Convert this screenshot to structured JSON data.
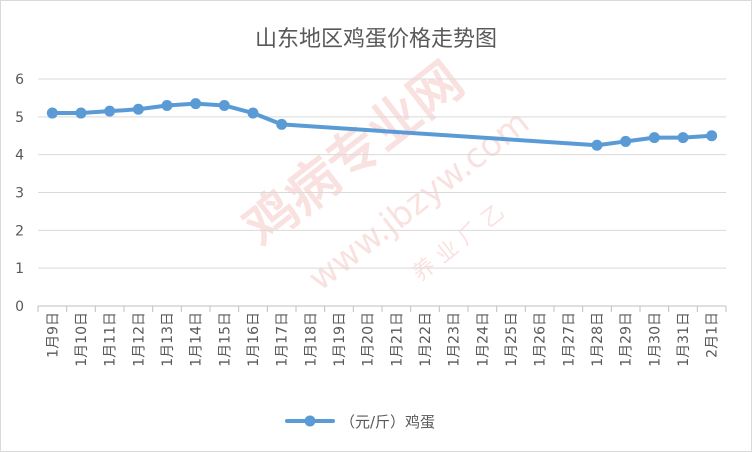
{
  "chart_data": {
    "type": "line",
    "title": "山东地区鸡蛋价格走势图",
    "xlabel": "",
    "ylabel": "",
    "ylim": [
      0,
      6
    ],
    "yticks": [
      0,
      1,
      2,
      3,
      4,
      5,
      6
    ],
    "grid": true,
    "legend_position": "bottom",
    "categories": [
      "1月9日",
      "1月10日",
      "1月11日",
      "1月12日",
      "1月13日",
      "1月14日",
      "1月15日",
      "1月16日",
      "1月17日",
      "1月18日",
      "1月19日",
      "1月20日",
      "1月21日",
      "1月22日",
      "1月23日",
      "1月24日",
      "1月25日",
      "1月26日",
      "1月27日",
      "1月28日",
      "1月29日",
      "1月30日",
      "1月31日",
      "2月1日"
    ],
    "series": [
      {
        "name": "（元/斤）鸡蛋",
        "color": "#5b9bd5",
        "values": [
          5.1,
          5.1,
          5.15,
          5.2,
          5.3,
          5.35,
          5.3,
          5.1,
          4.8,
          null,
          null,
          null,
          null,
          null,
          null,
          null,
          null,
          null,
          null,
          4.25,
          4.35,
          4.45,
          4.45,
          4.5
        ]
      }
    ]
  },
  "watermark": {
    "cn": "鸡病专业网",
    "url": "www.jbzyw.com",
    "small": "养 业 ⺁ 乙"
  }
}
